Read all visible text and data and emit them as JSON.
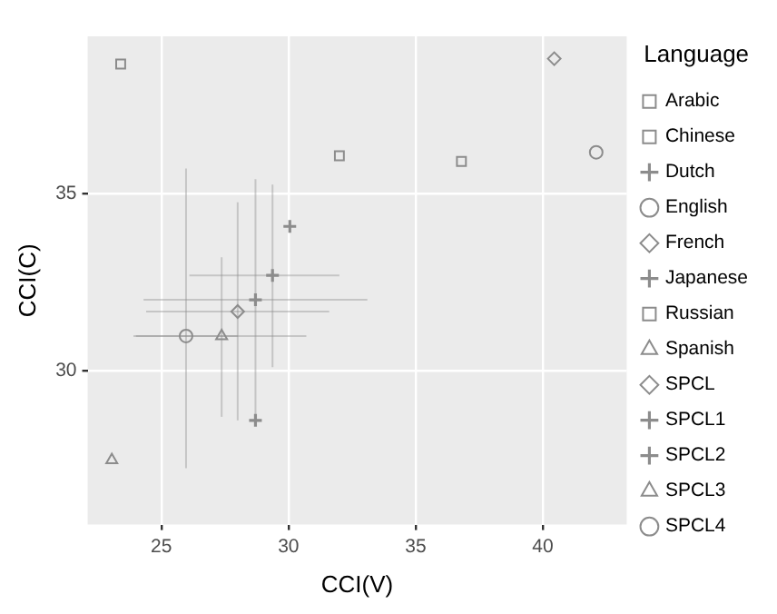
{
  "chart_data": {
    "type": "scatter",
    "xlabel": "CCI(V)",
    "ylabel": "CCI(C)",
    "legend_title": "Language",
    "legend": "right",
    "grid": true,
    "xlim": [
      22.1,
      43.3
    ],
    "ylim": [
      25.66,
      39.43
    ],
    "xticks": [
      25,
      30,
      35,
      40
    ],
    "yticks": [
      30,
      35
    ],
    "series": [
      {
        "name": "Arabic",
        "color": "#8c8c8c",
        "marker": "square",
        "x": [
          23.4
        ],
        "values": [
          38.65
        ]
      },
      {
        "name": "Chinese",
        "color": "#8c8c8c",
        "marker": "square",
        "x": [
          36.8
        ],
        "values": [
          35.9
        ]
      },
      {
        "name": "Dutch",
        "color": "#8c8c8c",
        "marker": "cross",
        "x": [
          30.05
        ],
        "values": [
          34.07
        ]
      },
      {
        "name": "English",
        "color": "#8c8c8c",
        "marker": "circle",
        "x": [
          42.1
        ],
        "values": [
          36.16
        ]
      },
      {
        "name": "French",
        "color": "#8c8c8c",
        "marker": "diamond",
        "x": [
          40.45
        ],
        "values": [
          38.8
        ]
      },
      {
        "name": "Japanese",
        "color": "#8c8c8c",
        "marker": "cross",
        "x": [
          28.7
        ],
        "values": [
          28.6
        ]
      },
      {
        "name": "Russian",
        "color": "#8c8c8c",
        "marker": "square",
        "x": [
          32.0
        ],
        "values": [
          36.06
        ]
      },
      {
        "name": "Spanish",
        "color": "#8c8c8c",
        "marker": "triangle",
        "x": [
          23.05
        ],
        "values": [
          27.48
        ]
      },
      {
        "name": "SPCL",
        "color": "#8c8c8c",
        "marker": "diamond",
        "x": [
          28.0
        ],
        "values": [
          31.67
        ],
        "errors": [
          [
            28.6,
            34.75
          ]
        ],
        "xerrors": [
          [
            24.4,
            31.6
          ]
        ]
      },
      {
        "name": "SPCL1",
        "color": "#8c8c8c",
        "marker": "cross",
        "x": [
          29.37
        ],
        "values": [
          32.69
        ],
        "errors": [
          [
            30.1,
            35.25
          ]
        ],
        "xerrors": [
          [
            26.1,
            32.0
          ]
        ]
      },
      {
        "name": "SPCL2",
        "color": "#8c8c8c",
        "marker": "cross",
        "x": [
          28.7
        ],
        "values": [
          32.0
        ],
        "errors": [
          [
            28.6,
            35.4
          ]
        ],
        "xerrors": [
          [
            24.3,
            33.1
          ]
        ]
      },
      {
        "name": "SPCL3",
        "color": "#8c8c8c",
        "marker": "triangle",
        "x": [
          27.37
        ],
        "values": [
          30.98
        ],
        "errors": [
          [
            28.7,
            33.2
          ]
        ],
        "xerrors": [
          [
            24.0,
            30.7
          ]
        ]
      },
      {
        "name": "SPCL4",
        "color": "#8c8c8c",
        "marker": "circle",
        "x": [
          25.97
        ],
        "values": [
          30.98
        ],
        "errors": [
          [
            27.25,
            35.7
          ]
        ],
        "xerrors": [
          [
            23.9,
            28.0
          ]
        ]
      }
    ]
  }
}
